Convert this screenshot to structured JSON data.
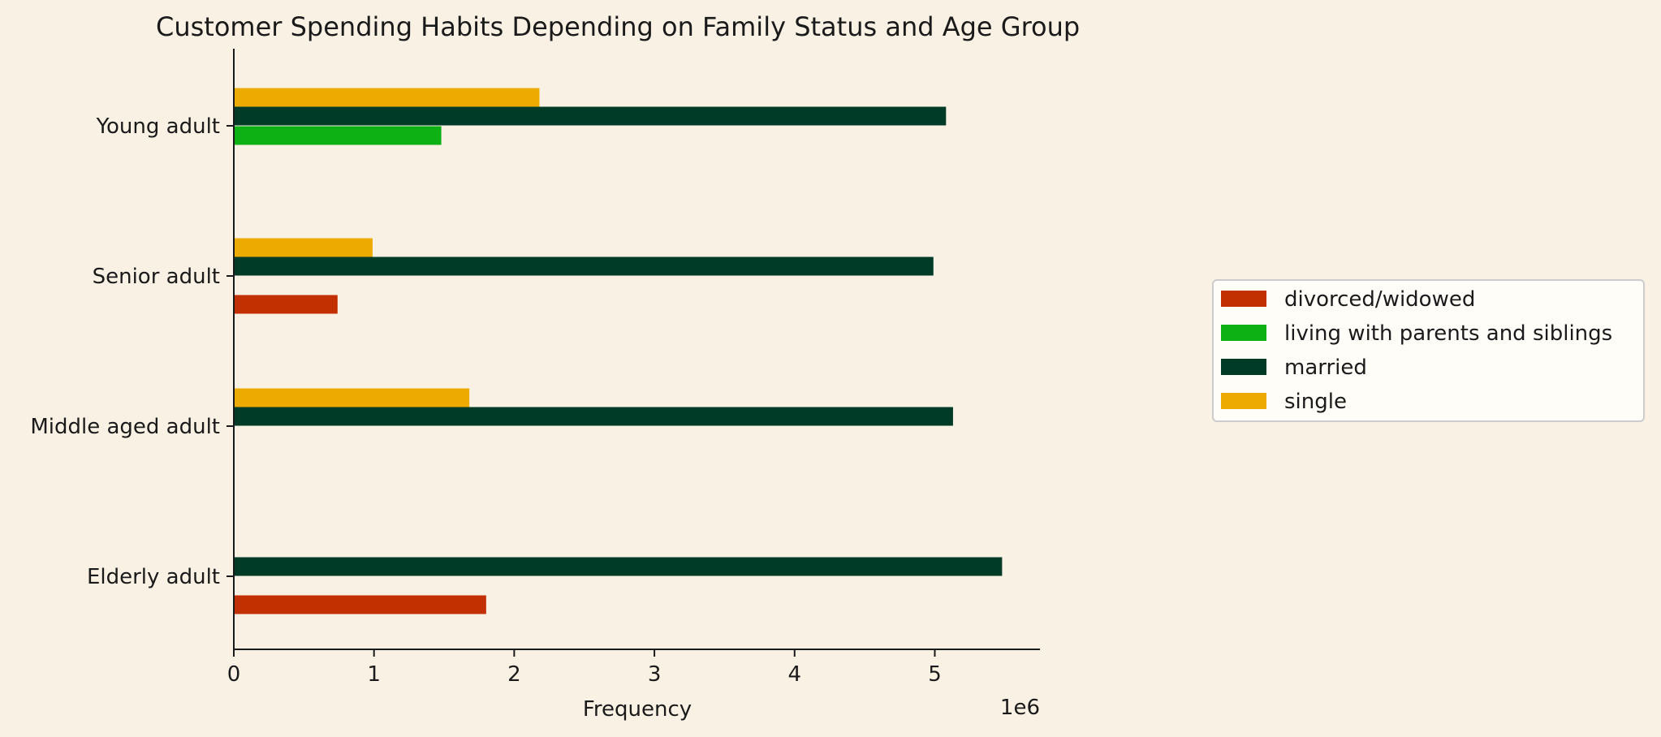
{
  "chart_data": {
    "type": "bar",
    "orientation": "horizontal",
    "title": "Customer Spending Habits Depending on Family Status and Age Group",
    "xlabel": "Frequency",
    "ylabel": "",
    "x_multiplier_label": "1e6",
    "xlim": [
      0,
      5.75
    ],
    "x_ticks": [
      "0",
      "1",
      "2",
      "3",
      "4",
      "5"
    ],
    "x_tick_values": [
      0,
      1,
      2,
      3,
      4,
      5
    ],
    "categories": [
      "Young adult",
      "Senior adult",
      "Middle aged adult",
      "Elderly adult"
    ],
    "series": [
      {
        "name": "divorced/widowed",
        "color": "#c23001",
        "values": [
          0,
          0.74,
          0,
          1.8
        ]
      },
      {
        "name": "living with parents and siblings",
        "color": "#0db113",
        "values": [
          1.48,
          0,
          0,
          0
        ]
      },
      {
        "name": "married",
        "color": "#003b28",
        "values": [
          5.08,
          4.99,
          5.13,
          5.48
        ]
      },
      {
        "name": "single",
        "color": "#edab01",
        "values": [
          2.18,
          0.99,
          1.68,
          0
        ]
      }
    ],
    "grid": false,
    "legend_position": "right"
  }
}
